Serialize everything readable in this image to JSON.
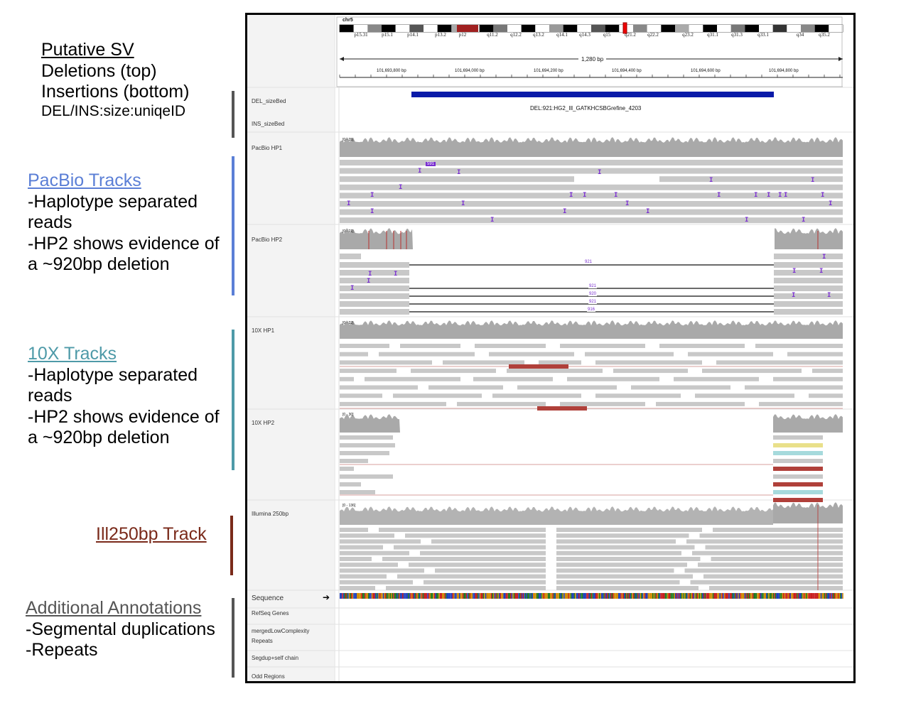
{
  "annotations": {
    "sv": {
      "title": "Putative SV",
      "lines": [
        "Deletions (top)",
        "Insertions (bottom)",
        "DEL/INS:size:uniqeID"
      ]
    },
    "pacbio": {
      "title": "PacBio Tracks",
      "lines": [
        "-Haplotype separated",
        "reads",
        "-HP2 shows evidence of",
        "a ~920bp deletion"
      ],
      "color": "#5b7fd6"
    },
    "tenx": {
      "title": "10X Tracks",
      "lines": [
        "-Haplotype separated",
        "reads",
        "-HP2 shows evidence of",
        "a ~920bp deletion"
      ],
      "color": "#4e9aa8"
    },
    "ill": {
      "title": "Ill250bp Track",
      "color": "#7a2a1a"
    },
    "additional": {
      "title": "Additional Annotations",
      "lines": [
        "-Segmental duplications",
        "-Repeats"
      ],
      "color": "#555555"
    }
  },
  "igv": {
    "chromosome": "chr5",
    "bands": [
      "p15.31",
      "p15.1",
      "p14.1",
      "p13.2",
      "p12",
      "q11.2",
      "q12.2",
      "q13.2",
      "q14.1",
      "q14.3",
      "q15",
      "q21.2",
      "q22.2",
      "q23.2",
      "q31.1",
      "q31.3",
      "q33.1",
      "q34",
      "q35.2"
    ],
    "span_label": "1,280 bp",
    "positions": [
      "101,693,800 bp",
      "101,694,000 bp",
      "101,694,200 bp",
      "101,694,400 bp",
      "101,694,600 bp",
      "101,694,800 bp"
    ],
    "tracks": {
      "del_bed": "DEL_sizeBed",
      "ins_bed": "INS_sizeBed",
      "pacbio_hp1": "PacBio HP1",
      "pacbio_hp2": "PacBio HP2",
      "tenx_hp1": "10X HP1",
      "tenx_hp2": "10X HP2",
      "illumina": "Illumina 250bp",
      "sequence": "Sequence",
      "refseq": "RefSeq Genes",
      "low_complexity_1": "mergedLowComplexity",
      "low_complexity_2": "Repeats",
      "segdup": "Segdup+self chain",
      "odd": "Odd Regions"
    },
    "deletion_feature_label": "DEL:921:HG2_Ill_GATKHCSBGrefine_4203",
    "pacbio_hp1_scale": "[0 - 35]",
    "pacbio_hp2_scale": "[0 - 21]",
    "tenx_hp1_scale": "[0 - 32]",
    "tenx_hp2_scale": "[0 - 30]",
    "illumina_scale": "[0 - 136]",
    "insertion_badge": "591",
    "deletion_sizes": [
      "921",
      "921",
      "920",
      "921",
      "916"
    ],
    "colors": {
      "deletion_bar": "#0a1aa8",
      "read_gray": "#c8c8c8",
      "coverage_gray": "#a9a9a9",
      "insertion_purple": "#7a2fd0",
      "mismatch_red": "#b8312f",
      "discordant_red": "#b0403a"
    }
  }
}
